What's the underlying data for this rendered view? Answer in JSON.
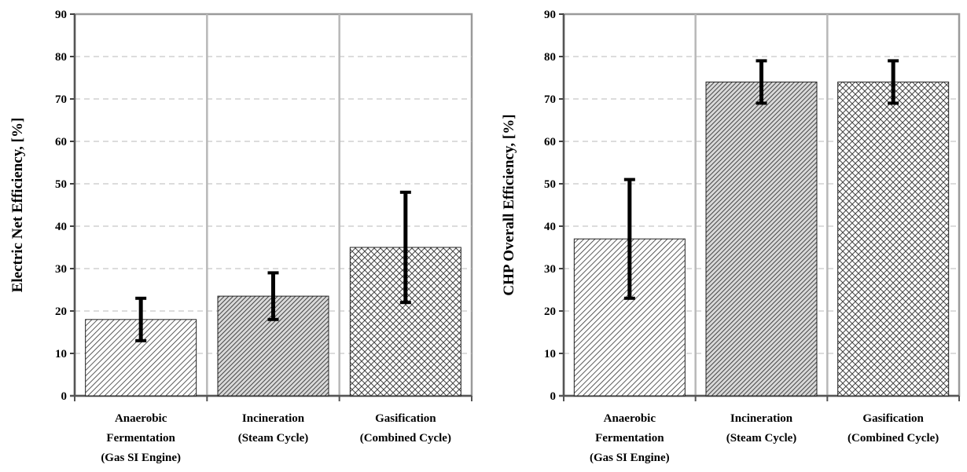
{
  "chart_data": [
    {
      "type": "bar",
      "ylabel": "Electric Net Efficiency, [%]",
      "xlabel": "",
      "ylim": [
        0,
        90
      ],
      "yticks": [
        "0",
        "10",
        "20",
        "30",
        "40",
        "50",
        "60",
        "70",
        "80",
        "90"
      ],
      "grid": "dashed horizontal",
      "categories": [
        [
          "Anaerobic",
          "Fermentation",
          "(Gas SI Engine)"
        ],
        [
          "Incineration",
          "(Steam Cycle)"
        ],
        [
          "Gasification",
          "(Combined Cycle)"
        ]
      ],
      "values": [
        18,
        23.5,
        35
      ],
      "error_low": [
        13,
        18,
        22
      ],
      "error_high": [
        23,
        29,
        48
      ],
      "patterns": [
        "diagonal-light",
        "diagonal-dense",
        "crosshatch"
      ]
    },
    {
      "type": "bar",
      "ylabel": "CHP Overall Efficiency, [%]",
      "xlabel": "",
      "ylim": [
        0,
        90
      ],
      "yticks": [
        "0",
        "10",
        "20",
        "30",
        "40",
        "50",
        "60",
        "70",
        "80",
        "90"
      ],
      "grid": "dashed horizontal",
      "categories": [
        [
          "Anaerobic",
          "Fermentation",
          "(Gas SI Engine)"
        ],
        [
          "Incineration",
          "(Steam Cycle)"
        ],
        [
          "Gasification",
          "(Combined Cycle)"
        ]
      ],
      "values": [
        37,
        74,
        74
      ],
      "error_low": [
        23,
        69,
        69
      ],
      "error_high": [
        51,
        79,
        79
      ],
      "patterns": [
        "diagonal-light",
        "diagonal-dense",
        "crosshatch"
      ]
    }
  ]
}
